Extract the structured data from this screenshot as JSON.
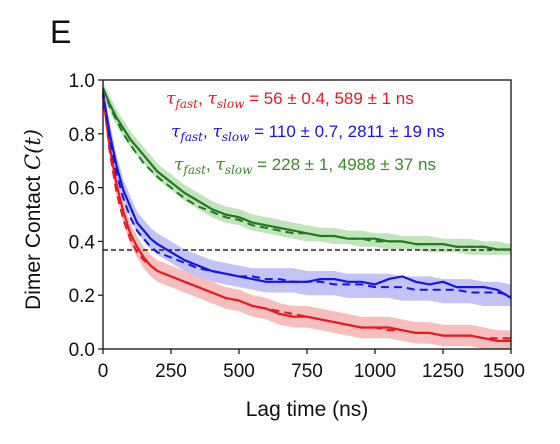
{
  "panel_label": "E",
  "chart_data": {
    "type": "line",
    "title": "",
    "xlabel": "Lag time (ns)",
    "ylabel_prefix": "Dimer Contact",
    "ylabel_math": "C(t)",
    "xlim": [
      0,
      1500
    ],
    "ylim": [
      0.0,
      1.0
    ],
    "xticks": [
      "0",
      "250",
      "500",
      "750",
      "1000",
      "1250",
      "1500"
    ],
    "yticks": [
      "0.0",
      "0.2",
      "0.4",
      "0.6",
      "0.8",
      "1.0"
    ],
    "grid": false,
    "reference_line": {
      "y": 0.368,
      "style": "dashed",
      "color": "#000000"
    },
    "annotations": [
      {
        "tau_fast": "τ",
        "fast_sub": "fast",
        "sep": ", ",
        "tau_slow": "τ",
        "slow_sub": "slow",
        "text": " = 56 ± 0.4, 589 ± 1 ns",
        "color": "#e8191f"
      },
      {
        "tau_fast": "τ",
        "fast_sub": "fast",
        "sep": ", ",
        "tau_slow": "τ",
        "slow_sub": "slow",
        "text": " = 110 ± 0.7, 2811 ± 19 ns",
        "color": "#1515e6"
      },
      {
        "tau_fast": "τ",
        "fast_sub": "fast",
        "sep": ", ",
        "tau_slow": "τ",
        "slow_sub": "slow",
        "text": " = 228 ± 1, 4988 ± 37 ns",
        "color": "#3a8a2a"
      }
    ],
    "series": [
      {
        "color": "#e8191f",
        "band_color": "#f4a2a2",
        "x": [
          0,
          25,
          50,
          75,
          100,
          125,
          150,
          175,
          200,
          250,
          300,
          350,
          400,
          450,
          500,
          550,
          600,
          650,
          700,
          750,
          800,
          850,
          900,
          950,
          1000,
          1050,
          1100,
          1150,
          1200,
          1250,
          1300,
          1350,
          1400,
          1450,
          1500
        ],
        "values": [
          0.94,
          0.75,
          0.61,
          0.51,
          0.43,
          0.38,
          0.34,
          0.31,
          0.29,
          0.27,
          0.25,
          0.23,
          0.21,
          0.19,
          0.18,
          0.16,
          0.15,
          0.13,
          0.12,
          0.12,
          0.11,
          0.1,
          0.09,
          0.08,
          0.08,
          0.08,
          0.07,
          0.06,
          0.06,
          0.05,
          0.05,
          0.05,
          0.04,
          0.03,
          0.03
        ],
        "band_low": [
          0.91,
          0.71,
          0.57,
          0.47,
          0.39,
          0.34,
          0.3,
          0.27,
          0.25,
          0.23,
          0.21,
          0.19,
          0.17,
          0.15,
          0.14,
          0.12,
          0.11,
          0.09,
          0.08,
          0.08,
          0.07,
          0.06,
          0.05,
          0.04,
          0.04,
          0.04,
          0.03,
          0.02,
          0.02,
          0.01,
          0.01,
          0.01,
          0.0,
          0.0,
          0.0
        ],
        "band_high": [
          0.97,
          0.79,
          0.65,
          0.55,
          0.47,
          0.42,
          0.38,
          0.35,
          0.33,
          0.31,
          0.29,
          0.27,
          0.25,
          0.23,
          0.22,
          0.2,
          0.19,
          0.17,
          0.16,
          0.16,
          0.15,
          0.14,
          0.13,
          0.12,
          0.12,
          0.12,
          0.11,
          0.1,
          0.1,
          0.09,
          0.09,
          0.09,
          0.08,
          0.07,
          0.07
        ],
        "fit": [
          0.95,
          0.73,
          0.58,
          0.48,
          0.41,
          0.36,
          0.33,
          0.31,
          0.29,
          0.27,
          0.25,
          0.23,
          0.21,
          0.19,
          0.18,
          0.16,
          0.15,
          0.14,
          0.13,
          0.12,
          0.11,
          0.1,
          0.09,
          0.08,
          0.08,
          0.07,
          0.07,
          0.06,
          0.06,
          0.05,
          0.05,
          0.05,
          0.04,
          0.04,
          0.04
        ]
      },
      {
        "color": "#1515e6",
        "band_color": "#a9a9f2",
        "x": [
          0,
          25,
          50,
          75,
          100,
          125,
          150,
          175,
          200,
          250,
          300,
          350,
          400,
          450,
          500,
          550,
          600,
          650,
          700,
          750,
          800,
          850,
          900,
          950,
          1000,
          1050,
          1100,
          1150,
          1200,
          1250,
          1300,
          1350,
          1400,
          1450,
          1500
        ],
        "values": [
          0.95,
          0.8,
          0.68,
          0.59,
          0.53,
          0.47,
          0.44,
          0.41,
          0.39,
          0.36,
          0.33,
          0.31,
          0.29,
          0.28,
          0.27,
          0.26,
          0.25,
          0.25,
          0.25,
          0.25,
          0.26,
          0.26,
          0.25,
          0.25,
          0.24,
          0.26,
          0.27,
          0.25,
          0.24,
          0.25,
          0.23,
          0.23,
          0.23,
          0.22,
          0.19
        ],
        "band_low": [
          0.92,
          0.76,
          0.64,
          0.55,
          0.49,
          0.43,
          0.4,
          0.37,
          0.35,
          0.32,
          0.29,
          0.27,
          0.25,
          0.24,
          0.23,
          0.22,
          0.21,
          0.21,
          0.21,
          0.2,
          0.2,
          0.2,
          0.19,
          0.19,
          0.19,
          0.19,
          0.18,
          0.18,
          0.18,
          0.17,
          0.17,
          0.17,
          0.16,
          0.16,
          0.16
        ],
        "band_high": [
          0.98,
          0.84,
          0.72,
          0.63,
          0.57,
          0.51,
          0.48,
          0.45,
          0.43,
          0.4,
          0.37,
          0.35,
          0.33,
          0.32,
          0.31,
          0.3,
          0.3,
          0.3,
          0.3,
          0.29,
          0.29,
          0.29,
          0.28,
          0.28,
          0.28,
          0.28,
          0.27,
          0.27,
          0.27,
          0.26,
          0.26,
          0.26,
          0.25,
          0.25,
          0.24
        ],
        "fit": [
          0.96,
          0.78,
          0.65,
          0.56,
          0.49,
          0.44,
          0.41,
          0.38,
          0.36,
          0.34,
          0.32,
          0.3,
          0.29,
          0.28,
          0.27,
          0.27,
          0.26,
          0.26,
          0.25,
          0.25,
          0.25,
          0.24,
          0.24,
          0.24,
          0.23,
          0.23,
          0.23,
          0.22,
          0.22,
          0.22,
          0.22,
          0.21,
          0.21,
          0.21,
          0.2
        ]
      },
      {
        "color": "#1f7a1f",
        "band_color": "#a8d8a0",
        "x": [
          0,
          25,
          50,
          75,
          100,
          150,
          200,
          250,
          300,
          350,
          400,
          450,
          500,
          550,
          600,
          650,
          700,
          750,
          800,
          850,
          900,
          950,
          1000,
          1050,
          1100,
          1150,
          1200,
          1250,
          1300,
          1350,
          1400,
          1450,
          1500
        ],
        "values": [
          0.97,
          0.91,
          0.86,
          0.82,
          0.78,
          0.72,
          0.66,
          0.62,
          0.58,
          0.55,
          0.52,
          0.5,
          0.49,
          0.47,
          0.46,
          0.45,
          0.44,
          0.43,
          0.42,
          0.42,
          0.41,
          0.41,
          0.41,
          0.4,
          0.4,
          0.39,
          0.39,
          0.39,
          0.38,
          0.38,
          0.38,
          0.37,
          0.37
        ],
        "band_low": [
          0.95,
          0.88,
          0.83,
          0.79,
          0.75,
          0.69,
          0.63,
          0.59,
          0.55,
          0.52,
          0.49,
          0.47,
          0.46,
          0.44,
          0.43,
          0.42,
          0.41,
          0.4,
          0.4,
          0.39,
          0.39,
          0.38,
          0.38,
          0.37,
          0.37,
          0.37,
          0.36,
          0.36,
          0.36,
          0.35,
          0.35,
          0.35,
          0.35
        ],
        "band_high": [
          0.99,
          0.94,
          0.89,
          0.85,
          0.81,
          0.75,
          0.69,
          0.65,
          0.61,
          0.58,
          0.55,
          0.53,
          0.52,
          0.5,
          0.49,
          0.48,
          0.47,
          0.46,
          0.45,
          0.45,
          0.44,
          0.44,
          0.43,
          0.43,
          0.42,
          0.42,
          0.42,
          0.41,
          0.41,
          0.41,
          0.4,
          0.4,
          0.39
        ],
        "fit": [
          0.97,
          0.9,
          0.85,
          0.8,
          0.76,
          0.69,
          0.64,
          0.6,
          0.56,
          0.53,
          0.51,
          0.49,
          0.48,
          0.46,
          0.45,
          0.44,
          0.43,
          0.43,
          0.42,
          0.42,
          0.41,
          0.41,
          0.4,
          0.4,
          0.4,
          0.39,
          0.39,
          0.39,
          0.38,
          0.38,
          0.38,
          0.37,
          0.37
        ]
      }
    ]
  }
}
